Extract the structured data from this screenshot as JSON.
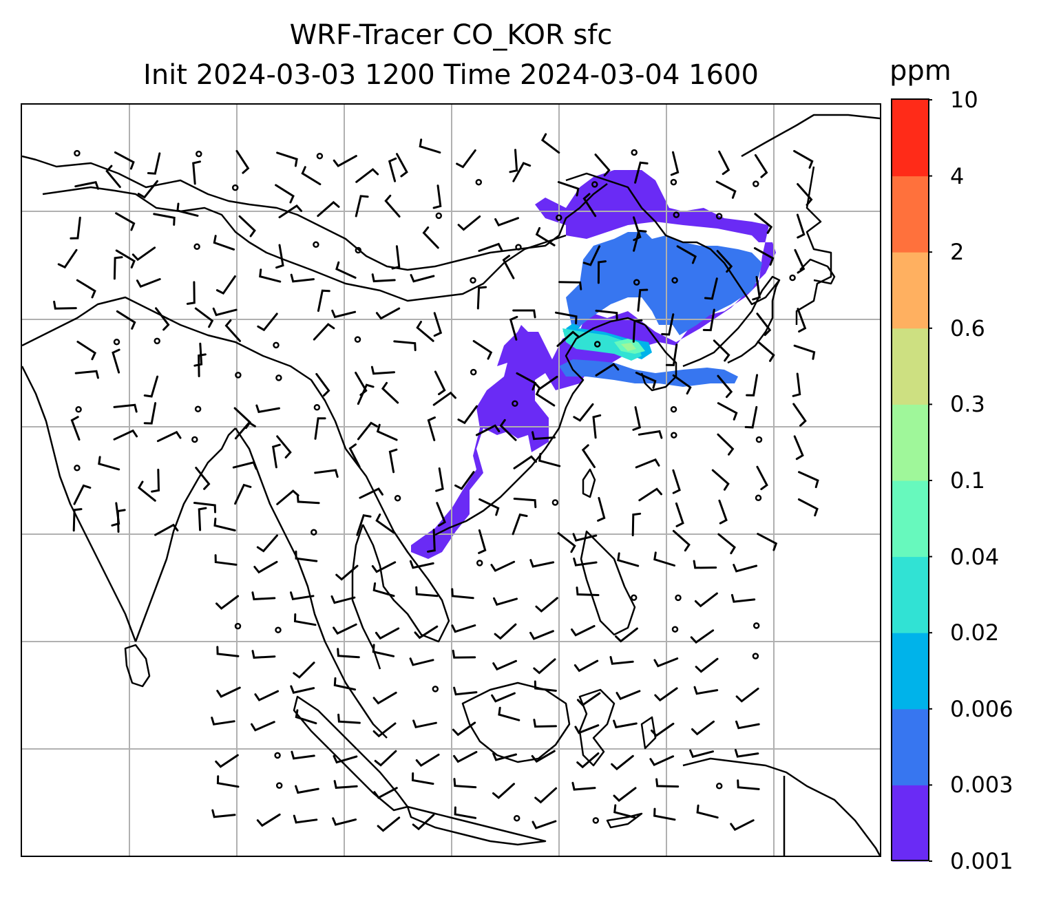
{
  "title": {
    "line1": "WRF-Tracer CO_KOR sfc",
    "line2": "Init 2024-03-03 1200 Time 2024-03-04 1600"
  },
  "colorbar": {
    "units": "ppm",
    "levels": [
      "0.001",
      "0.003",
      "0.006",
      "0.02",
      "0.04",
      "0.1",
      "0.3",
      "0.6",
      "2",
      "4",
      "10"
    ],
    "colors": [
      "#6a2bf5",
      "#3776f0",
      "#00b3ea",
      "#31e2d4",
      "#67f9bd",
      "#9ff79a",
      "#cde081",
      "#ffb060",
      "#ff713c",
      "#ff2b18"
    ]
  },
  "map": {
    "gridlines": true,
    "gridline_color": "#b0b0b0",
    "coastline_color": "#000000",
    "wind_barb_color": "#000000"
  }
}
